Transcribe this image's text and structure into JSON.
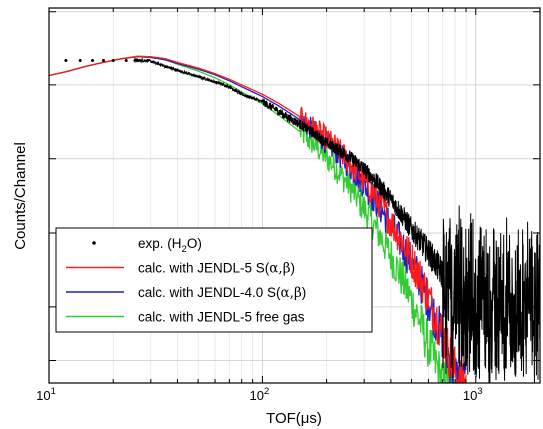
{
  "chart_data": {
    "type": "line",
    "title": "",
    "xlabel": "TOF(μs)",
    "ylabel": "Counts/Channel",
    "x_scale": "log",
    "y_scale": "log",
    "xlim": [
      10,
      2000
    ],
    "x_ticks": [
      {
        "value": 10,
        "base": "10",
        "exp": "1"
      },
      {
        "value": 100,
        "base": "10",
        "exp": "2"
      },
      {
        "value": 1000,
        "base": "10",
        "exp": "3"
      }
    ],
    "grid": true,
    "legend_position": "bottom-left",
    "series": [
      {
        "name": "exp. (H2O)",
        "legend": {
          "pre": "exp. (H",
          "sub": "2",
          "post": "O)"
        },
        "style": "dots",
        "color": "#000000",
        "x": [
          12,
          14,
          16,
          18,
          20,
          23,
          26,
          29,
          33,
          37,
          42,
          48,
          55,
          62,
          70,
          80,
          90,
          100,
          115,
          130,
          150,
          170,
          200,
          230,
          260,
          300,
          350,
          400,
          450,
          500,
          600,
          700,
          800,
          900,
          1000,
          1200,
          1500,
          2000
        ],
        "y": [
          0.86,
          0.86,
          0.86,
          0.86,
          0.86,
          0.86,
          0.86,
          0.86,
          0.85,
          0.84,
          0.83,
          0.82,
          0.81,
          0.8,
          0.79,
          0.77,
          0.76,
          0.75,
          0.73,
          0.71,
          0.69,
          0.67,
          0.64,
          0.62,
          0.6,
          0.57,
          0.53,
          0.49,
          0.45,
          0.41,
          0.35,
          0.29,
          0.25,
          0.23,
          0.22,
          0.22,
          0.21,
          0.21
        ]
      },
      {
        "name": "calc. with JENDL-5 S(α,β)",
        "legend": {
          "pre": "calc. with JENDL-5 S(",
          "symbol": "α,β",
          "post": ")"
        },
        "style": "line",
        "color": "#ff1a1a",
        "x": [
          10,
          12,
          15,
          18,
          22,
          26,
          30,
          35,
          40,
          50,
          60,
          70,
          80,
          100,
          120,
          150,
          180,
          220,
          260,
          300,
          350,
          400,
          450,
          500,
          550,
          600,
          650,
          700,
          750,
          800,
          850,
          900
        ],
        "y": [
          0.82,
          0.83,
          0.845,
          0.855,
          0.865,
          0.87,
          0.87,
          0.865,
          0.855,
          0.84,
          0.825,
          0.81,
          0.795,
          0.77,
          0.745,
          0.71,
          0.675,
          0.63,
          0.585,
          0.54,
          0.485,
          0.43,
          0.38,
          0.33,
          0.28,
          0.23,
          0.18,
          0.13,
          0.08,
          0.03,
          0.0,
          0.0
        ]
      },
      {
        "name": "calc. with JENDL-4.0 S(α,β)",
        "legend": {
          "pre": "calc. with JENDL-4.0 S(",
          "symbol": "α,β",
          "post": ")"
        },
        "style": "line",
        "color": "#2020c0",
        "x": [
          10,
          12,
          15,
          18,
          22,
          26,
          30,
          35,
          40,
          50,
          60,
          70,
          80,
          100,
          120,
          150,
          180,
          220,
          260,
          300,
          350,
          400,
          450,
          500,
          550,
          600,
          650,
          700,
          750,
          800,
          850,
          900
        ],
        "y": [
          0.82,
          0.83,
          0.845,
          0.855,
          0.865,
          0.87,
          0.868,
          0.862,
          0.852,
          0.837,
          0.822,
          0.806,
          0.79,
          0.764,
          0.738,
          0.702,
          0.666,
          0.62,
          0.575,
          0.53,
          0.475,
          0.42,
          0.37,
          0.32,
          0.27,
          0.22,
          0.17,
          0.12,
          0.07,
          0.02,
          0.0,
          0.0
        ]
      },
      {
        "name": "calc. with JENDL-5 free gas",
        "legend": {
          "pre": "calc. with JENDL-5 free gas"
        },
        "style": "line",
        "color": "#33cc33",
        "x": [
          10,
          12,
          15,
          18,
          22,
          26,
          30,
          35,
          40,
          50,
          60,
          70,
          80,
          100,
          120,
          150,
          180,
          220,
          260,
          300,
          350,
          400,
          450,
          500,
          550,
          600,
          650,
          700,
          750,
          800,
          850
        ],
        "y": [
          0.82,
          0.83,
          0.845,
          0.855,
          0.865,
          0.872,
          0.87,
          0.862,
          0.85,
          0.832,
          0.814,
          0.795,
          0.776,
          0.745,
          0.713,
          0.67,
          0.628,
          0.575,
          0.52,
          0.465,
          0.4,
          0.34,
          0.28,
          0.22,
          0.16,
          0.1,
          0.05,
          0.0,
          0.0,
          0.0,
          0.0
        ]
      }
    ]
  }
}
